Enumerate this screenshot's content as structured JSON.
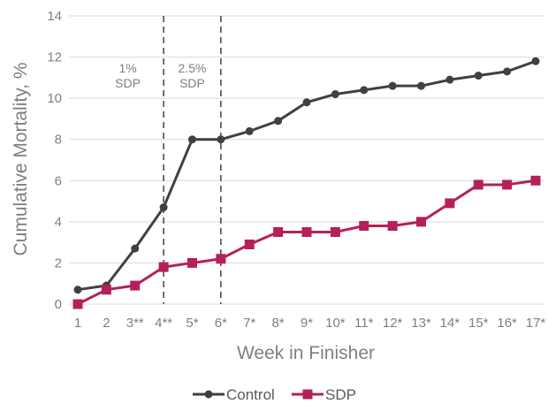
{
  "chart_data": {
    "type": "line",
    "title": "",
    "xlabel": "Week in Finisher",
    "ylabel": "Cumulative Mortality, %",
    "ylim": [
      0,
      14
    ],
    "yticks": [
      0,
      2,
      4,
      6,
      8,
      10,
      12,
      14
    ],
    "categories": [
      "1",
      "2",
      "3**",
      "4**",
      "5*",
      "6*",
      "7*",
      "8*",
      "9*",
      "10*",
      "11*",
      "12*",
      "13*",
      "14*",
      "15*",
      "16*",
      "17*"
    ],
    "series": [
      {
        "name": "Control",
        "color": "#404040",
        "marker": "circle",
        "values": [
          0.7,
          0.9,
          2.7,
          4.7,
          8.0,
          8.0,
          8.4,
          8.9,
          9.8,
          10.2,
          10.4,
          10.6,
          10.6,
          10.9,
          11.1,
          11.3,
          11.8
        ]
      },
      {
        "name": "SDP",
        "color": "#b5205a",
        "marker": "square",
        "values": [
          0.0,
          0.7,
          0.9,
          1.8,
          2.0,
          2.2,
          2.9,
          3.5,
          3.5,
          3.5,
          3.8,
          3.8,
          4.0,
          4.9,
          5.8,
          5.8,
          6.0
        ]
      }
    ],
    "grid": true,
    "legend": "bottom",
    "phase_lines": [
      {
        "after_category": "4**",
        "label_before": [
          "1%",
          "SDP"
        ]
      },
      {
        "after_category": "6*",
        "label_before": [
          "2.5%",
          "SDP"
        ]
      }
    ]
  }
}
